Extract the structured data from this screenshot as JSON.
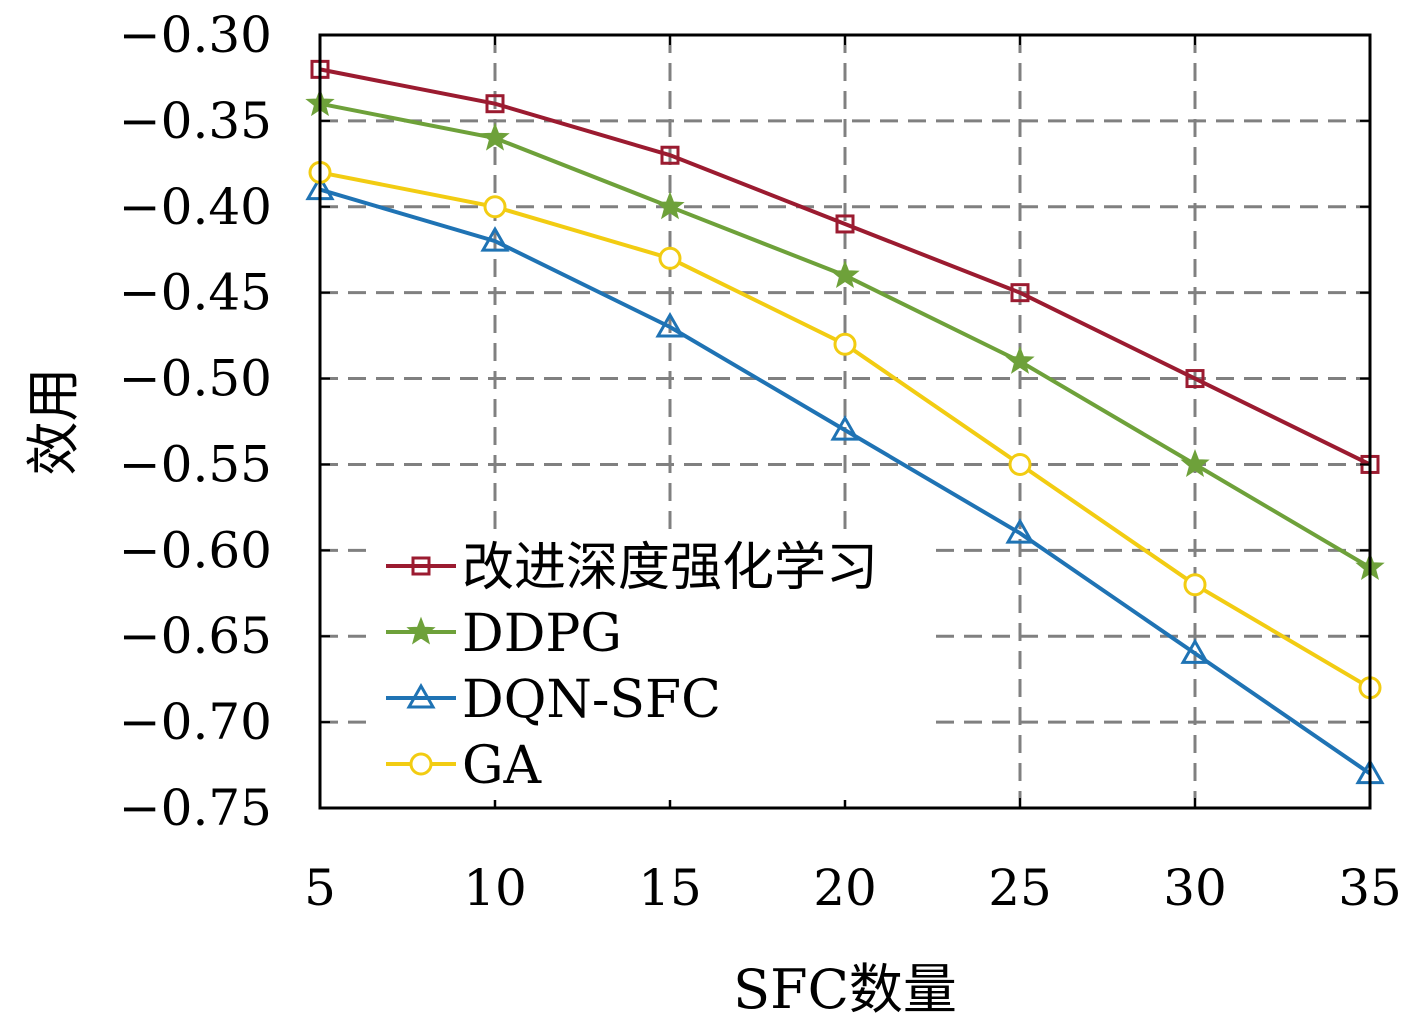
{
  "chart_data": {
    "type": "line",
    "xlabel": "SFC数量",
    "ylabel": "效用",
    "x": [
      5,
      10,
      15,
      20,
      25,
      30,
      35
    ],
    "xlim": [
      5,
      35
    ],
    "ylim": [
      -0.75,
      -0.3
    ],
    "xticks": [
      "5",
      "10",
      "15",
      "20",
      "25",
      "30",
      "35"
    ],
    "yticks": [
      "−0.30",
      "−0.35",
      "−0.40",
      "−0.45",
      "−0.50",
      "−0.55",
      "−0.60",
      "−0.65",
      "−0.70",
      "−0.75"
    ],
    "ytick_values": [
      -0.3,
      -0.35,
      -0.4,
      -0.45,
      -0.5,
      -0.55,
      -0.6,
      -0.65,
      -0.7,
      -0.75
    ],
    "grid": true,
    "legend_position": "bottom-left",
    "series": [
      {
        "name": "改进深度强化学习",
        "color": "#9b1b30",
        "marker": "square",
        "values": [
          -0.32,
          -0.34,
          -0.37,
          -0.41,
          -0.45,
          -0.5,
          -0.55
        ]
      },
      {
        "name": "DDPG",
        "color": "#6ea13a",
        "marker": "star",
        "values": [
          -0.34,
          -0.36,
          -0.4,
          -0.44,
          -0.49,
          -0.55,
          -0.61
        ]
      },
      {
        "name": "DQN-SFC",
        "color": "#1f73b4",
        "marker": "triangle",
        "values": [
          -0.39,
          -0.42,
          -0.47,
          -0.53,
          -0.59,
          -0.66,
          -0.73
        ]
      },
      {
        "name": "GA",
        "color": "#f2cc12",
        "marker": "circle",
        "values": [
          -0.38,
          -0.4,
          -0.43,
          -0.48,
          -0.55,
          -0.62,
          -0.68
        ]
      }
    ]
  }
}
